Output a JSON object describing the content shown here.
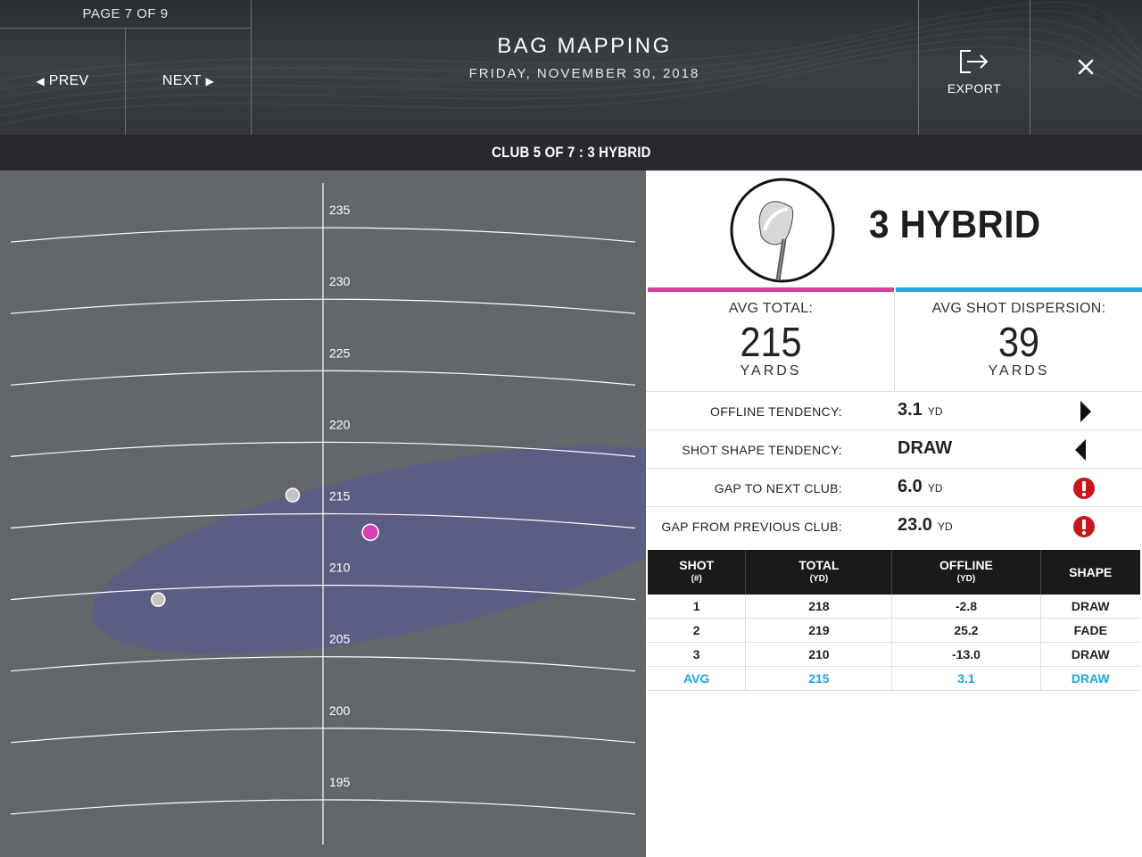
{
  "header": {
    "page_counter": "PAGE 7 OF 9",
    "prev_label": "PREV",
    "next_label": "NEXT",
    "title": "BAG MAPPING",
    "date": "FRIDAY, NOVEMBER 30, 2018",
    "export_label": "EXPORT",
    "export_icon": "export-icon",
    "close_icon": "close-icon"
  },
  "club_bar": {
    "label": "CLUB 5 OF 7 : 3 HYBRID"
  },
  "club": {
    "name": "3 HYBRID",
    "icon": "hybrid-club-icon"
  },
  "stats": {
    "avg_total": {
      "label": "AVG TOTAL:",
      "value": "215",
      "unit": "YARDS",
      "color": "#d6409f"
    },
    "dispersion": {
      "label": "AVG SHOT DISPERSION:",
      "value": "39",
      "unit": "YARDS",
      "color": "#23a8e0"
    }
  },
  "tendencies": [
    {
      "label": "OFFLINE TENDENCY:",
      "value": "3.1",
      "unit": "YD",
      "icon": "right-arrow-icon"
    },
    {
      "label": "SHOT SHAPE TENDENCY:",
      "value": "DRAW",
      "unit": "",
      "icon": "left-arrow-icon"
    },
    {
      "label": "GAP TO NEXT CLUB:",
      "value": "6.0",
      "unit": "YD",
      "icon": "warning-icon"
    },
    {
      "label": "GAP FROM PREVIOUS CLUB:",
      "value": "23.0",
      "unit": "YD",
      "icon": "warning-icon"
    }
  ],
  "table": {
    "headers": [
      {
        "title": "SHOT",
        "sub": "(#)"
      },
      {
        "title": "TOTAL",
        "sub": "(YD)"
      },
      {
        "title": "OFFLINE",
        "sub": "(YD)"
      },
      {
        "title": "SHAPE",
        "sub": ""
      }
    ],
    "rows": [
      [
        "1",
        "218",
        "-2.8",
        "DRAW"
      ],
      [
        "2",
        "219",
        "25.2",
        "FADE"
      ],
      [
        "3",
        "210",
        "-13.0",
        "DRAW"
      ]
    ],
    "avg": [
      "AVG",
      "215",
      "3.1",
      "DRAW"
    ],
    "avg_color": "#1fa5e3"
  },
  "chart_data": {
    "type": "scatter",
    "y_ticks": [
      195,
      200,
      205,
      210,
      215,
      220,
      225,
      230,
      235
    ],
    "ylim": [
      191,
      239
    ],
    "xlim": [
      -25,
      24
    ],
    "dispersion_color": "#5b5c86",
    "average_color": "#d63fb6",
    "shot_color": "#c4c4c4",
    "points": [
      {
        "x": -2.8,
        "y": 216.3,
        "kind": "shot"
      },
      {
        "x": 3.1,
        "y": 213.7,
        "kind": "average"
      },
      {
        "x": -13.0,
        "y": 209.0,
        "kind": "shot"
      }
    ]
  }
}
